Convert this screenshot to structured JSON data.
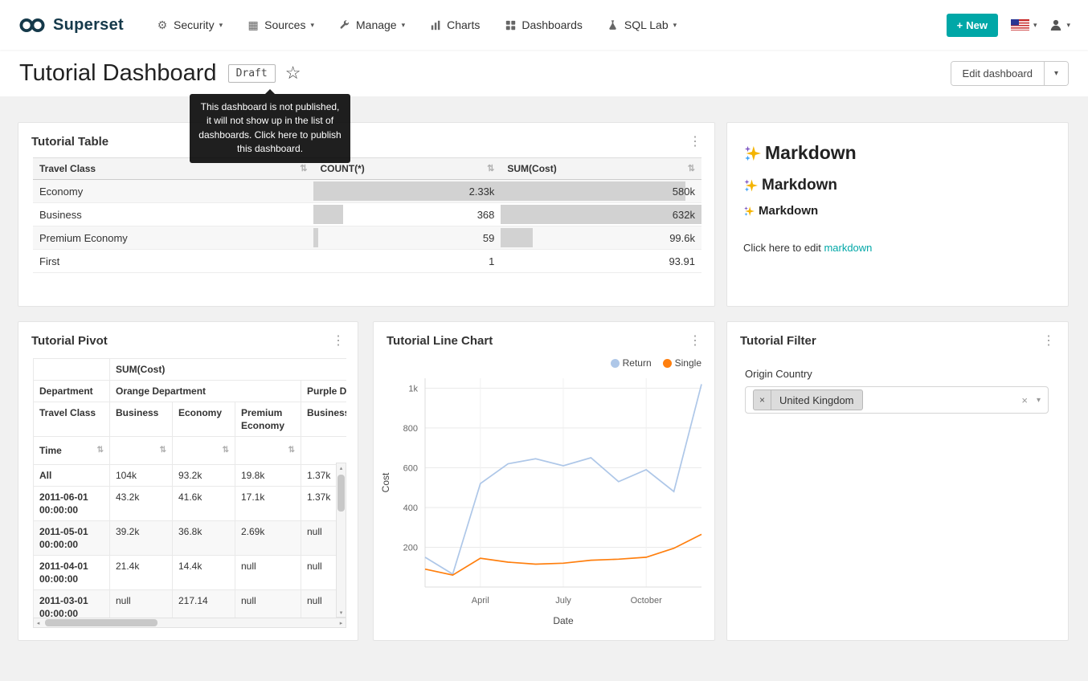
{
  "colors": {
    "accent": "#00a7a7",
    "bar_fill": "#d2d2d2",
    "tooltip_bg": "#000000"
  },
  "icons": {
    "gear": "⚙",
    "grid": "▦",
    "more": "⋮",
    "star": "☆",
    "caret_down": "▾",
    "sort": "⇅",
    "plus": "+",
    "close": "×",
    "arrow_up": "▴",
    "arrow_down": "▾",
    "arrow_left": "◂",
    "arrow_right": "▸"
  },
  "navbar": {
    "brand": "Superset",
    "items": [
      {
        "label": "Security",
        "caret": true
      },
      {
        "label": "Sources",
        "caret": true
      },
      {
        "label": "Manage",
        "caret": true
      },
      {
        "label": "Charts",
        "caret": false
      },
      {
        "label": "Dashboards",
        "caret": false
      },
      {
        "label": "SQL Lab",
        "caret": true
      }
    ],
    "new_button_label": "New"
  },
  "header": {
    "title": "Tutorial Dashboard",
    "draft_badge": "Draft",
    "tooltip": "This dashboard is not published, it will not show up in the list of dashboards. Click here to publish this dashboard.",
    "edit_button": "Edit dashboard"
  },
  "tutorial_table": {
    "title": "Tutorial Table",
    "columns": [
      "Travel Class",
      "COUNT(*)",
      "SUM(Cost)"
    ],
    "rows": [
      {
        "name": "Economy",
        "count": "2.33k",
        "count_pct": 100,
        "sum": "580k",
        "sum_pct": 92
      },
      {
        "name": "Business",
        "count": "368",
        "count_pct": 15.8,
        "sum": "632k",
        "sum_pct": 100
      },
      {
        "name": "Premium Economy",
        "count": "59",
        "count_pct": 2.5,
        "sum": "99.6k",
        "sum_pct": 15.8
      },
      {
        "name": "First",
        "count": "1",
        "count_pct": 0,
        "sum": "93.91",
        "sum_pct": 0
      }
    ]
  },
  "markdown_card": {
    "heading1": "Markdown",
    "heading2": "Markdown",
    "heading3": "Markdown",
    "footer_prefix": "Click here to edit ",
    "footer_link": "markdown"
  },
  "pivot": {
    "title": "Tutorial Pivot",
    "metric": "SUM(Cost)",
    "col_group_label": "Department",
    "col_groups": [
      "Orange Department",
      "Purple Department"
    ],
    "col_label": "Travel Class",
    "columns": [
      "Business",
      "Economy",
      "Premium Economy",
      "Business"
    ],
    "row_label": "Time",
    "rows": [
      {
        "time": "All",
        "values": [
          "104k",
          "93.2k",
          "19.8k",
          "1.37k"
        ]
      },
      {
        "time": "2011-06-01 00:00:00",
        "values": [
          "43.2k",
          "41.6k",
          "17.1k",
          "1.37k"
        ]
      },
      {
        "time": "2011-05-01 00:00:00",
        "values": [
          "39.2k",
          "36.8k",
          "2.69k",
          "null"
        ]
      },
      {
        "time": "2011-04-01 00:00:00",
        "values": [
          "21.4k",
          "14.4k",
          "null",
          "null"
        ]
      },
      {
        "time": "2011-03-01 00:00:00",
        "values": [
          "null",
          "217.14",
          "null",
          "null"
        ]
      }
    ]
  },
  "chart_data": {
    "type": "line",
    "title": "Tutorial Line Chart",
    "xlabel": "Date",
    "ylabel": "Cost",
    "ylim": [
      0,
      1050
    ],
    "yticks": [
      200,
      400,
      600,
      800,
      1000
    ],
    "ytick_labels": [
      "200",
      "400",
      "600",
      "800",
      "1k"
    ],
    "x": [
      "2011-02",
      "2011-03",
      "2011-04",
      "2011-05",
      "2011-06",
      "2011-07",
      "2011-08",
      "2011-09",
      "2011-10",
      "2011-11",
      "2011-12"
    ],
    "xticks": [
      {
        "label": "April",
        "index": 2
      },
      {
        "label": "July",
        "index": 5
      },
      {
        "label": "October",
        "index": 8
      }
    ],
    "grid": true,
    "legend_position": "top-right",
    "series": [
      {
        "name": "Return",
        "color": "#aec7e8",
        "values": [
          150,
          65,
          520,
          620,
          645,
          610,
          650,
          530,
          590,
          480,
          1020
        ]
      },
      {
        "name": "Single",
        "color": "#ff7f0e",
        "values": [
          90,
          60,
          145,
          125,
          115,
          120,
          135,
          140,
          150,
          195,
          265
        ]
      }
    ]
  },
  "filter_card": {
    "title": "Tutorial Filter",
    "field_label": "Origin Country",
    "selected_value": "United Kingdom"
  }
}
